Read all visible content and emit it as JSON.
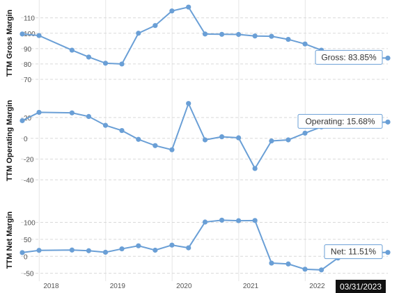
{
  "chart_data": [
    {
      "type": "line",
      "ylabel": "TTM Gross Margin",
      "ylim": [
        70,
        118
      ],
      "yticks": [
        70,
        80,
        90,
        100,
        110
      ],
      "color": "#6a9fd6",
      "x": [
        "2017-09-30",
        "2017-12-31",
        "2018-06-30",
        "2018-09-30",
        "2018-12-31",
        "2019-03-31",
        "2019-06-30",
        "2019-09-30",
        "2019-12-31",
        "2020-03-31",
        "2020-06-30",
        "2020-09-30",
        "2020-12-31",
        "2021-03-31",
        "2021-06-30",
        "2021-09-30",
        "2021-12-31",
        "2022-03-31",
        "2022-06-30",
        "2022-09-30",
        "2022-12-31",
        "2023-03-31"
      ],
      "y": [
        99.5,
        98.5,
        89.0,
        84.5,
        80.5,
        80.0,
        100.0,
        105.0,
        114.5,
        117.0,
        99.5,
        99.3,
        99.2,
        98.2,
        98.0,
        96.0,
        93.0,
        89.0,
        86.0,
        84.0,
        83.9,
        83.85
      ],
      "tooltip": "Gross: 83.85%"
    },
    {
      "type": "line",
      "ylabel": "TTM Operating Margin",
      "ylim": [
        -45,
        38
      ],
      "yticks": [
        -40,
        -20,
        0,
        20
      ],
      "color": "#6a9fd6",
      "x": [
        "2017-09-30",
        "2017-12-31",
        "2018-06-30",
        "2018-09-30",
        "2018-12-31",
        "2019-03-31",
        "2019-06-30",
        "2019-09-30",
        "2019-12-31",
        "2020-03-31",
        "2020-06-30",
        "2020-09-30",
        "2020-12-31",
        "2021-03-31",
        "2021-06-30",
        "2021-09-30",
        "2021-12-31",
        "2022-03-31",
        "2022-06-30",
        "2022-09-30",
        "2022-12-31",
        "2023-03-31"
      ],
      "y": [
        17.0,
        25.0,
        24.5,
        21.0,
        12.5,
        7.5,
        -1.0,
        -7.0,
        -11.0,
        33.5,
        -1.5,
        1.5,
        0.5,
        -29.0,
        -2.5,
        -1.5,
        5.0,
        11.0,
        12.5,
        14.0,
        15.0,
        15.68
      ],
      "tooltip": "Operating: 15.68%"
    },
    {
      "type": "line",
      "ylabel": "TTM Net Margin",
      "ylim": [
        -65,
        140
      ],
      "yticks": [
        -50,
        0,
        50,
        100
      ],
      "color": "#6a9fd6",
      "x": [
        "2017-09-30",
        "2017-12-31",
        "2018-06-30",
        "2018-09-30",
        "2018-12-31",
        "2019-03-31",
        "2019-06-30",
        "2019-09-30",
        "2019-12-31",
        "2020-03-31",
        "2020-06-30",
        "2020-09-30",
        "2020-12-31",
        "2021-03-31",
        "2021-06-30",
        "2021-09-30",
        "2021-12-31",
        "2022-03-31",
        "2022-06-30",
        "2022-09-30",
        "2022-12-31",
        "2023-03-31"
      ],
      "y": [
        11.0,
        17.5,
        18.5,
        16.5,
        12.0,
        22.0,
        31.0,
        18.0,
        33.0,
        25.0,
        101.0,
        106.5,
        105.0,
        105.5,
        -20.0,
        -22.5,
        -38.0,
        -40.0,
        -5.0,
        8.0,
        10.5,
        11.51
      ],
      "tooltip": "Net: 11.51%"
    }
  ],
  "x_axis": {
    "labels": [
      "2018",
      "2019",
      "2020",
      "2021",
      "2022"
    ],
    "label_dates": [
      "2018-01-01",
      "2019-01-01",
      "2020-01-01",
      "2021-01-01",
      "2022-01-01"
    ],
    "range": [
      "2017-09-30",
      "2023-03-31"
    ]
  },
  "crosshair_date": "03/31/2023",
  "colors": {
    "line": "#6a9fd6",
    "date_box": "#111111"
  }
}
